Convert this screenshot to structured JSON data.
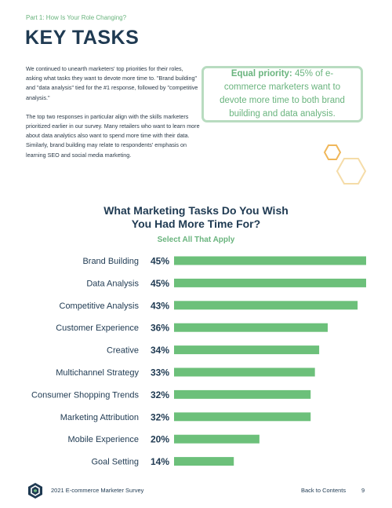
{
  "header": {
    "section_label": "Part 1: How Is Your Role Changing?",
    "title": "KEY TASKS"
  },
  "body": {
    "paragraph1": "We continued to unearth marketers' top priorities for their roles, asking what tasks they want to devote more time to. \"Brand building\" and \"data analysis\" tied for the #1 response, followed by \"competitive analysis.\"",
    "paragraph2": "The top two responses in particular align with the skills marketers prioritized earlier in our survey. Many retailers who want to learn more about data analytics also want to spend more time with their data. Similarly, brand building may relate to respondents' emphasis on learning SEO and social media marketing."
  },
  "callout": {
    "lead": "Equal priority:",
    "text": " 45% of e-commerce marketers want to devote more time to both brand building and data analysis."
  },
  "colors": {
    "navy": "#1f3a52",
    "green": "#6ab47e",
    "bar": "#6cc07a",
    "callout_border": "#b8dcc0",
    "hex_orange": "#f0b75a",
    "hex_light": "#f5dca8"
  },
  "chart_data": {
    "type": "bar",
    "orientation": "horizontal",
    "title": "What Marketing Tasks Do You Wish You Had More Time For?",
    "subtitle": "Select All That Apply",
    "categories": [
      "Brand Building",
      "Data Analysis",
      "Competitive Analysis",
      "Customer Experience",
      "Creative",
      "Multichannel Strategy",
      "Consumer Shopping Trends",
      "Marketing Attribution",
      "Mobile Experience",
      "Goal Setting"
    ],
    "values": [
      45,
      45,
      43,
      36,
      34,
      33,
      32,
      32,
      20,
      14
    ],
    "value_labels": [
      "45%",
      "45%",
      "43%",
      "36%",
      "34%",
      "33%",
      "32%",
      "32%",
      "20%",
      "14%"
    ],
    "unit": "%",
    "xlim": [
      0,
      45
    ],
    "grid": false,
    "legend": "none"
  },
  "footer": {
    "left": "2021 E-commerce Marketer Survey",
    "right": "Back to Contents",
    "page": "9"
  }
}
